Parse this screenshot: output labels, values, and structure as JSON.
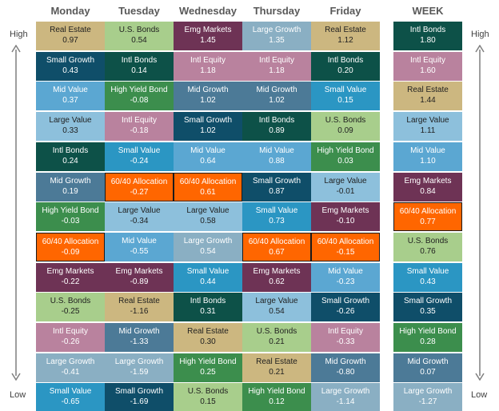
{
  "side_labels": {
    "high": "High",
    "low": "Low"
  },
  "chart_data": {
    "type": "table",
    "title": "",
    "columns": [
      "Monday",
      "Tuesday",
      "Wednesday",
      "Thursday",
      "Friday",
      "WEEK"
    ],
    "ranking_direction": "High to Low (top to bottom)",
    "highlight_asset": "60/40 Allocation",
    "asset_colors": {
      "Real Estate": "#CCB780",
      "U.S. Bonds": "#A8CE8C",
      "Emg Markets": "#6E3355",
      "Large Growth": "#8AAFC3",
      "Small Growth": "#0F4E69",
      "Intl Bonds": "#0D5148",
      "Intl Equity": "#B9829E",
      "Mid Value": "#5BA7D2",
      "Mid Growth": "#4C7A97",
      "Large Value": "#8DC0DC",
      "High Yield Bond": "#3C8E4D",
      "60/40 Allocation": "#FF6600",
      "Small Value": "#2B96C3"
    },
    "dark_text_assets": [
      "Real Estate",
      "U.S. Bonds",
      "Large Value"
    ],
    "columns_data": [
      [
        {
          "name": "Real Estate",
          "value": "0.97"
        },
        {
          "name": "Small Growth",
          "value": "0.43"
        },
        {
          "name": "Mid Value",
          "value": "0.37"
        },
        {
          "name": "Large Value",
          "value": "0.33"
        },
        {
          "name": "Intl Bonds",
          "value": "0.24"
        },
        {
          "name": "Mid Growth",
          "value": "0.19"
        },
        {
          "name": "High Yield Bond",
          "value": "-0.03"
        },
        {
          "name": "60/40 Allocation",
          "value": "-0.09"
        },
        {
          "name": "Emg Markets",
          "value": "-0.22"
        },
        {
          "name": "U.S. Bonds",
          "value": "-0.25"
        },
        {
          "name": "Intl Equity",
          "value": "-0.26"
        },
        {
          "name": "Large Growth",
          "value": "-0.41"
        },
        {
          "name": "Small Value",
          "value": "-0.65"
        }
      ],
      [
        {
          "name": "U.S. Bonds",
          "value": "0.54"
        },
        {
          "name": "Intl Bonds",
          "value": "0.14"
        },
        {
          "name": "High Yield Bond",
          "value": "-0.08"
        },
        {
          "name": "Intl Equity",
          "value": "-0.18"
        },
        {
          "name": "Small Value",
          "value": "-0.24"
        },
        {
          "name": "60/40 Allocation",
          "value": "-0.27"
        },
        {
          "name": "Large Value",
          "value": "-0.34"
        },
        {
          "name": "Mid Value",
          "value": "-0.55"
        },
        {
          "name": "Emg Markets",
          "value": "-0.89"
        },
        {
          "name": "Real Estate",
          "value": "-1.16"
        },
        {
          "name": "Mid Growth",
          "value": "-1.33"
        },
        {
          "name": "Large Growth",
          "value": "-1.59"
        },
        {
          "name": "Small Growth",
          "value": "-1.69"
        }
      ],
      [
        {
          "name": "Emg Markets",
          "value": "1.45"
        },
        {
          "name": "Intl Equity",
          "value": "1.18"
        },
        {
          "name": "Mid Growth",
          "value": "1.02"
        },
        {
          "name": "Small Growth",
          "value": "1.02"
        },
        {
          "name": "Mid Value",
          "value": "0.64"
        },
        {
          "name": "60/40 Allocation",
          "value": "0.61"
        },
        {
          "name": "Large Value",
          "value": "0.58"
        },
        {
          "name": "Large Growth",
          "value": "0.54"
        },
        {
          "name": "Small Value",
          "value": "0.44"
        },
        {
          "name": "Intl Bonds",
          "value": "0.31"
        },
        {
          "name": "Real Estate",
          "value": "0.30"
        },
        {
          "name": "High Yield Bond",
          "value": "0.25"
        },
        {
          "name": "U.S. Bonds",
          "value": "0.15"
        }
      ],
      [
        {
          "name": "Large Growth",
          "value": "1.35"
        },
        {
          "name": "Intl Equity",
          "value": "1.18"
        },
        {
          "name": "Mid Growth",
          "value": "1.02"
        },
        {
          "name": "Intl Bonds",
          "value": "0.89"
        },
        {
          "name": "Mid Value",
          "value": "0.88"
        },
        {
          "name": "Small Growth",
          "value": "0.87"
        },
        {
          "name": "Small Value",
          "value": "0.73"
        },
        {
          "name": "60/40 Allocation",
          "value": "0.67"
        },
        {
          "name": "Emg Markets",
          "value": "0.62"
        },
        {
          "name": "Large Value",
          "value": "0.54"
        },
        {
          "name": "U.S. Bonds",
          "value": "0.21"
        },
        {
          "name": "Real Estate",
          "value": "0.21"
        },
        {
          "name": "High Yield Bond",
          "value": "0.12"
        }
      ],
      [
        {
          "name": "Real Estate",
          "value": "1.12"
        },
        {
          "name": "Intl Bonds",
          "value": "0.20"
        },
        {
          "name": "Small Value",
          "value": "0.15"
        },
        {
          "name": "U.S. Bonds",
          "value": "0.09"
        },
        {
          "name": "High Yield Bond",
          "value": "0.03"
        },
        {
          "name": "Large Value",
          "value": "-0.01"
        },
        {
          "name": "Emg Markets",
          "value": "-0.10"
        },
        {
          "name": "60/40 Allocation",
          "value": "-0.15"
        },
        {
          "name": "Mid Value",
          "value": "-0.23"
        },
        {
          "name": "Small Growth",
          "value": "-0.26"
        },
        {
          "name": "Intl Equity",
          "value": "-0.33"
        },
        {
          "name": "Mid Growth",
          "value": "-0.80"
        },
        {
          "name": "Large Growth",
          "value": "-1.14"
        }
      ],
      [
        {
          "name": "Intl Bonds",
          "value": "1.80"
        },
        {
          "name": "Intl Equity",
          "value": "1.60"
        },
        {
          "name": "Real Estate",
          "value": "1.44"
        },
        {
          "name": "Large Value",
          "value": "1.11"
        },
        {
          "name": "Mid Value",
          "value": "1.10"
        },
        {
          "name": "Emg Markets",
          "value": "0.84"
        },
        {
          "name": "60/40 Allocation",
          "value": "0.77"
        },
        {
          "name": "U.S. Bonds",
          "value": "0.76"
        },
        {
          "name": "Small Value",
          "value": "0.43"
        },
        {
          "name": "Small Growth",
          "value": "0.35"
        },
        {
          "name": "High Yield Bond",
          "value": "0.28"
        },
        {
          "name": "Mid Growth",
          "value": "0.07"
        },
        {
          "name": "Large Growth",
          "value": "-1.27"
        }
      ]
    ]
  }
}
